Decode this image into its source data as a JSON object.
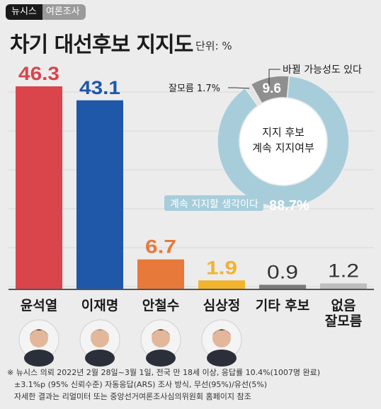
{
  "header": {
    "brand": "뉴시스",
    "sub": "여론조사",
    "title": "차기 대선후보 지지도",
    "unit": "단위: %"
  },
  "chart_data": [
    {
      "type": "bar",
      "title": "차기 대선후보 지지도",
      "categories": [
        "윤석열",
        "이재명",
        "안철수",
        "심상정",
        "기타 후보",
        "없음\n잘모름"
      ],
      "values": [
        46.3,
        43.1,
        6.7,
        1.9,
        0.9,
        1.2
      ],
      "value_labels": [
        "46.3",
        "43.1",
        "6.7",
        "1.9",
        "0.9",
        "1.2"
      ],
      "colors": [
        "#d9454b",
        "#1f57a9",
        "#e7793a",
        "#f2b42c",
        "#7a7a7a",
        "#bdbdbd"
      ],
      "label_colors": [
        "#d9454b",
        "#1f57a9",
        "#e7793a",
        "#f2b42c",
        "#333333",
        "#333333"
      ],
      "photos": [
        "candidate-1",
        "candidate-2",
        "candidate-3",
        "candidate-4"
      ],
      "ylim": [
        0,
        50
      ],
      "grid": true
    },
    {
      "type": "pie",
      "title": "지지 후보 계속 지지여부",
      "center_lines": [
        "지지 후보",
        "계속 지지여부"
      ],
      "slices": [
        {
          "name": "계속 지지할 생각이다",
          "value": 88.7,
          "label": "88.7%",
          "color": "#a7cddb"
        },
        {
          "name": "바뀔 가능성도 있다",
          "value": 9.6,
          "label": "9.6",
          "color": "#8f8f8f"
        },
        {
          "name": "잘모름",
          "value": 1.7,
          "label": "1.7%",
          "color": "#e4e4e4"
        }
      ],
      "annotations": {
        "main": "계속 지지할 생각이다",
        "change": "바뀔 가능성도 있다",
        "unknown": "잘모름 1.7%"
      }
    }
  ],
  "footnote": {
    "line1": "※ 뉴시스 의뢰 2022년 2월 28일~3월 1일, 전국 만 18세 이상, 응답률 10.4%(1007명 완료)",
    "line2": "±3.1%p (95% 신뢰수준) 자동응답(ARS) 조사 방식, 무선(95%)/유선(5%)",
    "line3": "자세한 결과는 리얼미터 또는 중앙선거여론조사심의위원회 홈페이지 참조"
  }
}
